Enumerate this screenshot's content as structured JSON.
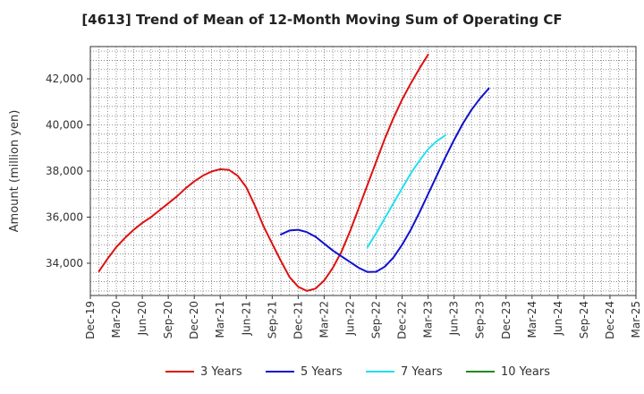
{
  "chart_data": {
    "type": "line",
    "title": "[4613]  Trend of Mean of 12-Month Moving Sum of Operating CF",
    "xlabel": "",
    "ylabel": "Amount (million yen)",
    "x_ticks": [
      "Dec-19",
      "Mar-20",
      "Jun-20",
      "Sep-20",
      "Dec-20",
      "Mar-21",
      "Jun-21",
      "Sep-21",
      "Dec-21",
      "Mar-22",
      "Jun-22",
      "Sep-22",
      "Dec-22",
      "Mar-23",
      "Jun-23",
      "Sep-23",
      "Dec-23",
      "Mar-24",
      "Jun-24",
      "Sep-24",
      "Dec-24",
      "Mar-25"
    ],
    "ylim": [
      32600,
      43400
    ],
    "y_ticks": [
      34000,
      36000,
      38000,
      40000,
      42000
    ],
    "y_tick_labels": [
      "34,000",
      "36,000",
      "38,000",
      "40,000",
      "42,000"
    ],
    "grid": true,
    "legend_position": "bottom",
    "series": [
      {
        "name": "3 Years",
        "color": "#dd1111",
        "start_index": 0,
        "values": [
          33650,
          34200,
          34700,
          35100,
          35450,
          35750,
          36000,
          36300,
          36600,
          36900,
          37250,
          37550,
          37800,
          37980,
          38080,
          38050,
          37800,
          37300,
          36500,
          35600,
          34850,
          34100,
          33400,
          32980,
          32800,
          32900,
          33250,
          33800,
          34500,
          35400,
          36400,
          37400,
          38400,
          39400,
          40300,
          41100,
          41800,
          42450,
          43050
        ]
      },
      {
        "name": "5 Years",
        "color": "#1111cc",
        "start_index": 21,
        "values": [
          35250,
          35420,
          35450,
          35350,
          35150,
          34850,
          34550,
          34300,
          34050,
          33800,
          33620,
          33630,
          33850,
          34250,
          34800,
          35450,
          36200,
          37000,
          37800,
          38600,
          39350,
          40050,
          40650,
          41150,
          41580
        ]
      },
      {
        "name": "7 Years",
        "color": "#22e0f0",
        "start_index": 31,
        "values": [
          34700,
          35300,
          35950,
          36600,
          37250,
          37900,
          38450,
          38950,
          39300,
          39550
        ]
      },
      {
        "name": "10 Years",
        "color": "#228822",
        "start_index": 0,
        "values": []
      }
    ]
  }
}
